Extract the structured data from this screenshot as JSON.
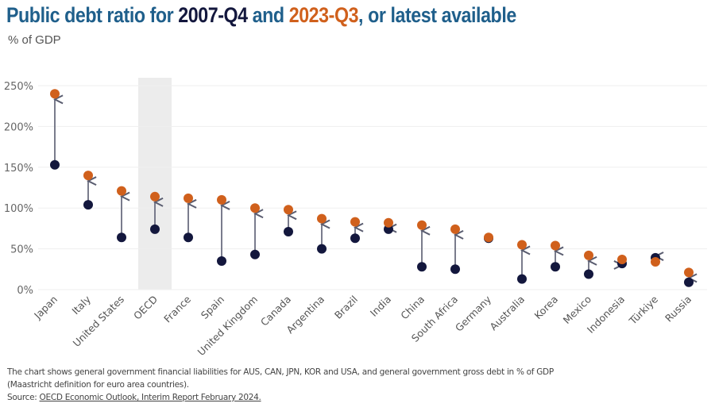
{
  "title": {
    "prefix": "Public debt ratio for ",
    "series1": "2007-Q4",
    "middle": " and ",
    "series2": "2023-Q3",
    "suffix": ", or latest available"
  },
  "subtitle": "% of GDP",
  "colors": {
    "title_blue": "#1f5f8b",
    "series_2007": "#13173d",
    "series_2023": "#d0601c",
    "arrow": "#6b6e80",
    "highlight_band": "#ececec",
    "grid": "#efefef"
  },
  "chart_data": {
    "type": "scatter",
    "subtype": "dumbbell-arrow",
    "title": "Public debt ratio for 2007-Q4 and 2023-Q3, or latest available",
    "ylabel": "% of GDP",
    "xlabel": "",
    "ylim": [
      0,
      250
    ],
    "yticks": [
      0,
      50,
      100,
      150,
      200,
      250
    ],
    "ytick_labels": [
      "0%",
      "50%",
      "100%",
      "150%",
      "200%",
      "250%"
    ],
    "grid": true,
    "highlighted_category": "OECD",
    "categories": [
      "Japan",
      "Italy",
      "United States",
      "OECD",
      "France",
      "Spain",
      "United Kingdom",
      "Canada",
      "Argentina",
      "Brazil",
      "India",
      "China",
      "South Africa",
      "Germany",
      "Australia",
      "Korea",
      "Mexico",
      "Indonesia",
      "Türkiye",
      "Russia"
    ],
    "series": [
      {
        "name": "2007-Q4",
        "values": [
          153,
          104,
          64,
          74,
          64,
          35,
          43,
          71,
          50,
          63,
          74,
          28,
          25,
          63,
          13,
          28,
          19,
          32,
          39,
          9
        ]
      },
      {
        "name": "2023-Q3",
        "values": [
          240,
          140,
          121,
          114,
          112,
          110,
          100,
          98,
          87,
          83,
          82,
          79,
          74,
          64,
          55,
          54,
          42,
          37,
          34,
          21
        ]
      }
    ]
  },
  "notes": {
    "line1": "The chart shows general government financial liabilities for AUS, CAN, JPN, KOR and USA, and general government gross debt in % of GDP",
    "line2": "(Maastricht definition for euro area countries).",
    "source_prefix": "Source: ",
    "source_link": "OECD Economic Outlook, Interim Report February 2024."
  }
}
